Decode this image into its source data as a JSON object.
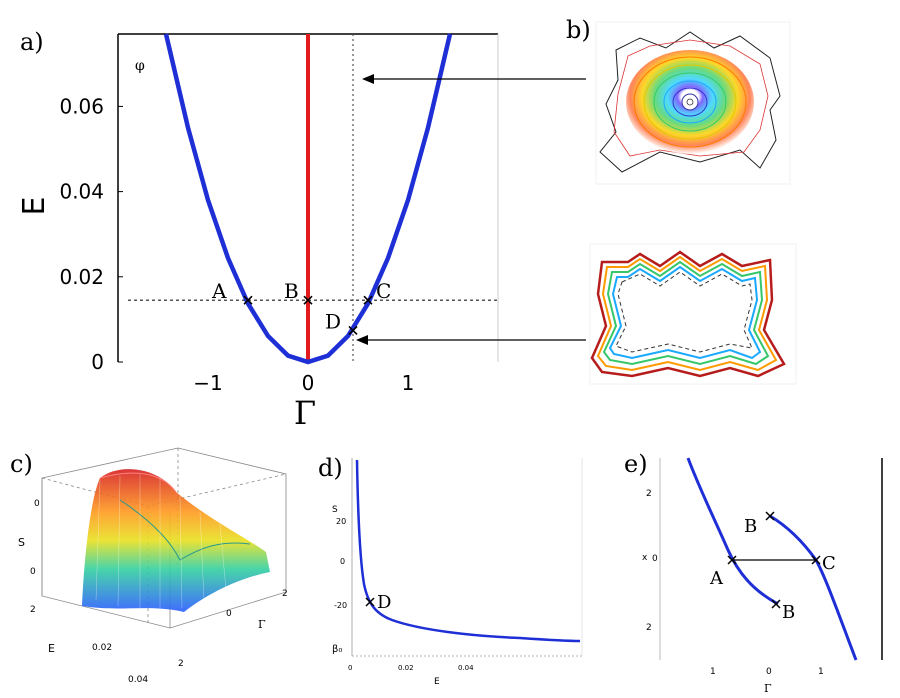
{
  "panels": {
    "a": "a)",
    "b": "b)",
    "c": "c)",
    "d": "d)",
    "e": "e)"
  },
  "colors": {
    "curve": "#1f2fd6",
    "vertical_line": "#e31a1c",
    "axis": "#000000",
    "dotted": "#555555"
  },
  "chart_data": [
    {
      "panel": "a",
      "type": "line",
      "xlabel": "Γ",
      "ylabel": "E",
      "xlim": [
        -1.9,
        1.9
      ],
      "ylim": [
        0,
        0.077
      ],
      "xticks": [
        -1,
        0,
        1
      ],
      "xtick_labels": [
        "−1",
        "0",
        "1"
      ],
      "yticks": [
        0,
        0.02,
        0.04,
        0.06
      ],
      "ytick_labels": [
        "0",
        "0.02",
        "0.04",
        "0.06"
      ],
      "corner_label": "φ",
      "series": [
        {
          "x": [
            -1.42,
            -1.2,
            -1.0,
            -0.8,
            -0.6,
            -0.4,
            -0.2,
            0.0,
            0.2,
            0.4,
            0.6,
            0.8,
            1.0,
            1.2,
            1.42
          ],
          "y": [
            0.077,
            0.055,
            0.038,
            0.0244,
            0.0137,
            0.0061,
            0.0015,
            0.0,
            0.0015,
            0.0061,
            0.0137,
            0.0244,
            0.038,
            0.055,
            0.077
          ]
        }
      ],
      "vertical_line": {
        "x": 0,
        "y": [
          0,
          0.077
        ]
      },
      "dotted_vertical_x": 0.45,
      "dotted_horizontal_y": 0.0145,
      "points": [
        {
          "label": "A",
          "x": -0.6,
          "y": 0.0145
        },
        {
          "label": "B",
          "x": 0.0,
          "y": 0.0145
        },
        {
          "label": "C",
          "x": 0.6,
          "y": 0.0145
        },
        {
          "label": "D",
          "x": 0.45,
          "y": 0.0074
        }
      ]
    },
    {
      "panel": "d",
      "type": "line",
      "xlabel": "E",
      "ylabel": "S",
      "xtick_labels": [
        "0",
        "0.02",
        "0.04"
      ],
      "ytick_labels": [
        "20",
        "0",
        "-20"
      ],
      "bottom_label": "β₀",
      "points": [
        {
          "label": "D",
          "x": 0.0074,
          "y": -25
        }
      ]
    },
    {
      "panel": "e",
      "type": "line",
      "xlabel": "Γ",
      "ylabel": "x",
      "xtick_labels": [
        "1",
        "0",
        "1"
      ],
      "ytick_labels": [
        "2",
        "0",
        "2"
      ],
      "points": [
        {
          "label": "A"
        },
        {
          "label": "B"
        },
        {
          "label": "C"
        },
        {
          "label": "B"
        }
      ]
    },
    {
      "panel": "c",
      "type": "area",
      "xlabel": "E",
      "ylabel": "S",
      "zlabel": "Γ",
      "xtick_labels": [
        "0.02",
        "0.04"
      ],
      "ytick_labels": [
        "0",
        "2"
      ],
      "ztick_labels": [
        "0",
        "2"
      ],
      "side_ticks": [
        "0",
        "0",
        "2"
      ]
    }
  ]
}
